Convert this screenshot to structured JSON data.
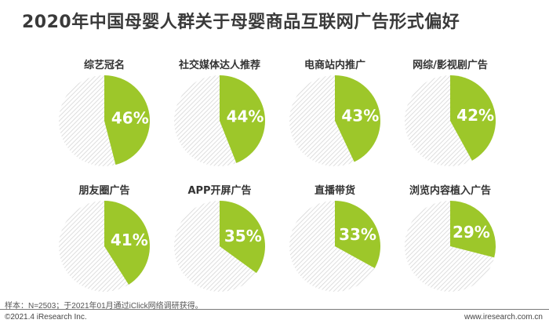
{
  "title": "2020年中国母婴人群关于母婴商品互联网广告形式偏好",
  "colors": {
    "accent": "#9DC72A",
    "rest_stroke": "#D6D6D6"
  },
  "chart_data": {
    "type": "pie",
    "title": "2020年中国母婴人群关于母婴商品互联网广告形式偏好",
    "unit": "%",
    "categories": [
      "综艺冠名",
      "社交媒体达人推荐",
      "电商站内推广",
      "网综/影视剧广告",
      "朋友圈广告",
      "APP开屏广告",
      "直播带货",
      "浏览内容植入广告"
    ],
    "values": [
      46,
      44,
      43,
      42,
      41,
      35,
      33,
      29
    ],
    "labels": [
      "46%",
      "44%",
      "43%",
      "42%",
      "41%",
      "35%",
      "33%",
      "29%"
    ]
  },
  "note": "样本：N=2503；于2021年01月通过iClick网络调研获得。",
  "footer": {
    "copyright": "©2021.4 iResearch Inc.",
    "website": "www.iresearch.com.cn"
  }
}
